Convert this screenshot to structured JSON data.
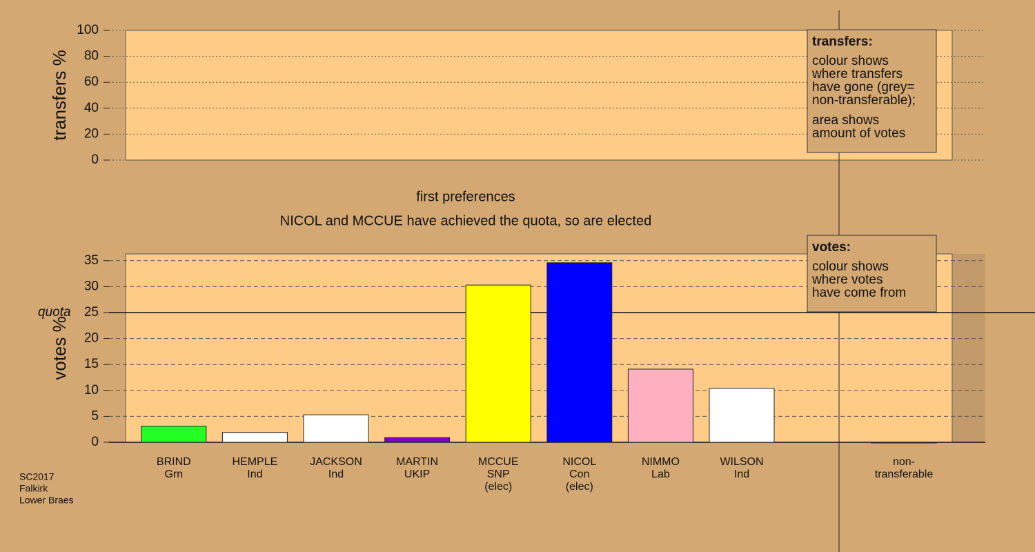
{
  "chart_data": [
    {
      "type": "bar",
      "ylabel": "transfers %",
      "ylim": [
        0,
        100
      ],
      "yticks": [
        0,
        20,
        40,
        60,
        80,
        100
      ],
      "grid": true,
      "legend": {
        "title": "transfers:",
        "paragraphs": [
          [
            "colour shows",
            "where transfers",
            "have gone (grey=",
            "non-transferable);"
          ],
          [
            "area shows",
            "amount of votes"
          ]
        ]
      }
    },
    {
      "type": "bar",
      "title": "first preferences",
      "subtitle": "NICOL and MCCUE have achieved the quota, so are elected",
      "ylabel": "votes %",
      "ylim": [
        0,
        36.3
      ],
      "yticks": [
        0,
        5,
        10,
        15,
        20,
        25,
        30,
        35
      ],
      "grid": true,
      "quota": {
        "label": "quota",
        "value": 25
      },
      "categories": [
        [
          "BRIND",
          "Grn"
        ],
        [
          "HEMPLE",
          "Ind"
        ],
        [
          "JACKSON",
          "Ind"
        ],
        [
          "MARTIN",
          "UKIP"
        ],
        [
          "MCCUE",
          "SNP",
          "(elec)"
        ],
        [
          "NICOL",
          "Con",
          "(elec)"
        ],
        [
          "NIMMO",
          "Lab"
        ],
        [
          "WILSON",
          "Ind"
        ],
        [
          "non-",
          "transferable"
        ]
      ],
      "values": [
        3.1,
        1.9,
        5.3,
        0.9,
        30.3,
        34.6,
        14.1,
        10.4,
        0
      ],
      "colors": [
        "#22ff22",
        "#ffffff",
        "#ffffff",
        "#7a00cc",
        "#ffff00",
        "#0000ff",
        "#ffb0c0",
        "#ffffff",
        "#aaaaaa"
      ],
      "legend": {
        "title": "votes:",
        "paragraphs": [
          [
            "colour shows",
            "where votes",
            "have come from"
          ]
        ]
      }
    }
  ],
  "footer": [
    "SC2017",
    "Falkirk",
    "Lower Braes"
  ]
}
